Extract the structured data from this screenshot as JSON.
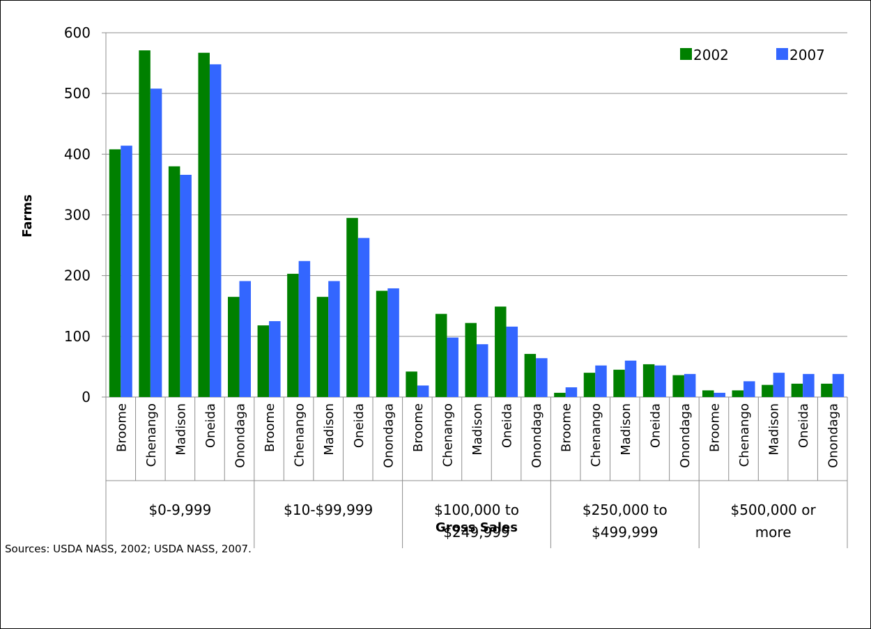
{
  "chart_data": {
    "type": "bar",
    "title": "",
    "ylabel": "Farms",
    "xlabel": "Gross Sales",
    "ylim": [
      0,
      600
    ],
    "yticks": [
      0,
      100,
      200,
      300,
      400,
      500,
      600
    ],
    "grid": true,
    "legend_position": "top-right",
    "groups": [
      {
        "label_lines": [
          "$0-9,999"
        ],
        "counties": [
          "Broome",
          "Chenango",
          "Madison",
          "Oneida",
          "Onondaga"
        ]
      },
      {
        "label_lines": [
          "$10-$99,999"
        ],
        "counties": [
          "Broome",
          "Chenango",
          "Madison",
          "Oneida",
          "Onondaga"
        ]
      },
      {
        "label_lines": [
          "$100,000 to",
          "$249,999"
        ],
        "counties": [
          "Broome",
          "Chenango",
          "Madison",
          "Oneida",
          "Onondaga"
        ]
      },
      {
        "label_lines": [
          "$250,000 to",
          "$499,999"
        ],
        "counties": [
          "Broome",
          "Chenango",
          "Madison",
          "Oneida",
          "Onondaga"
        ]
      },
      {
        "label_lines": [
          "$500,000 or",
          "more"
        ],
        "counties": [
          "Broome",
          "Chenango",
          "Madison",
          "Oneida",
          "Onondaga"
        ]
      }
    ],
    "series": [
      {
        "name": "2002",
        "color": "#008000",
        "values": [
          408,
          571,
          380,
          567,
          165,
          118,
          203,
          165,
          295,
          175,
          42,
          137,
          122,
          149,
          71,
          7,
          40,
          45,
          54,
          36,
          11,
          11,
          20,
          22,
          22
        ]
      },
      {
        "name": "2007",
        "color": "#3366ff",
        "values": [
          414,
          508,
          366,
          548,
          191,
          125,
          224,
          191,
          262,
          179,
          19,
          98,
          87,
          116,
          64,
          16,
          52,
          60,
          52,
          38,
          7,
          26,
          40,
          38,
          38
        ]
      }
    ]
  },
  "footer": {
    "source": "Sources: USDA NASS, 2002; USDA NASS, 2007."
  }
}
